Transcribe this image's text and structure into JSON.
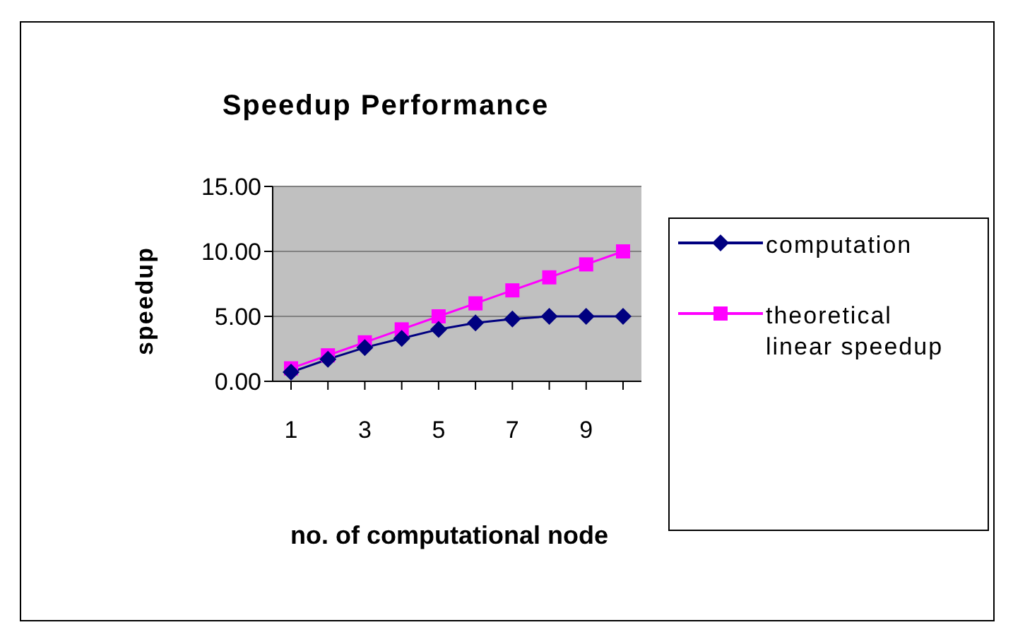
{
  "chart_data": {
    "type": "line",
    "title": "Speedup Performance",
    "xlabel": "no. of computational node",
    "ylabel": "speedup",
    "categories": [
      "1",
      null,
      "3",
      null,
      "5",
      null,
      "7",
      null,
      "9",
      null
    ],
    "series": [
      {
        "name": "computation",
        "color": "#000080",
        "marker": "diamond",
        "values": [
          0.7,
          1.7,
          2.6,
          3.3,
          4.0,
          4.5,
          4.8,
          5.0,
          5.0,
          5.0
        ]
      },
      {
        "name": "theoretical linear speedup",
        "color": "#ff00ff",
        "marker": "square",
        "values": [
          1,
          2,
          3,
          4,
          5,
          6,
          7,
          8,
          9,
          10
        ]
      }
    ],
    "ylim": [
      0,
      15
    ],
    "yticks": [
      {
        "value": 0,
        "label": "0.00"
      },
      {
        "value": 5,
        "label": "5.00"
      },
      {
        "value": 10,
        "label": "10.00"
      },
      {
        "value": 15,
        "label": "15.00"
      }
    ],
    "grid": "y",
    "legend": "right"
  }
}
